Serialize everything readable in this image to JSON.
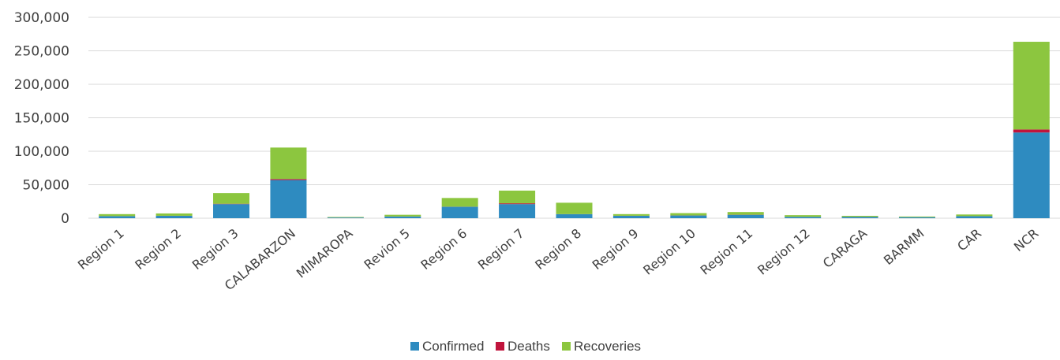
{
  "chart_data": {
    "type": "bar",
    "stacked": true,
    "categories": [
      "Region 1",
      "Region 2",
      "Region 3",
      "CALABARZON",
      "MIMAROPA",
      "Revion 5",
      "Region 6",
      "Region 7",
      "Region 8",
      "Region 9",
      "Region 10",
      "Region 11",
      "Region 12",
      "CARAGA",
      "BARMM",
      "CAR",
      "NCR"
    ],
    "series": [
      {
        "name": "Confirmed",
        "color": "#2e8bc0",
        "values": [
          3000,
          3500,
          21000,
          57000,
          1000,
          2500,
          17000,
          21000,
          6000,
          3500,
          4000,
          5000,
          2000,
          2000,
          1500,
          3000,
          128000
        ]
      },
      {
        "name": "Deaths",
        "color": "#c0143c",
        "values": [
          100,
          100,
          500,
          1500,
          50,
          100,
          200,
          1200,
          100,
          100,
          100,
          200,
          50,
          50,
          50,
          50,
          4500
        ]
      },
      {
        "name": "Recoveries",
        "color": "#8cc63f",
        "values": [
          3000,
          3500,
          16000,
          47000,
          800,
          2500,
          13000,
          19000,
          17000,
          2500,
          3500,
          4000,
          2500,
          1500,
          1000,
          2500,
          131000
        ]
      }
    ],
    "y_tick_labels": [
      "0",
      "50,000",
      "100,000",
      "150,000",
      "200,000",
      "250,000",
      "300,000"
    ],
    "ylim": [
      0,
      300000
    ],
    "grid": true,
    "legend": "bottom-center"
  }
}
